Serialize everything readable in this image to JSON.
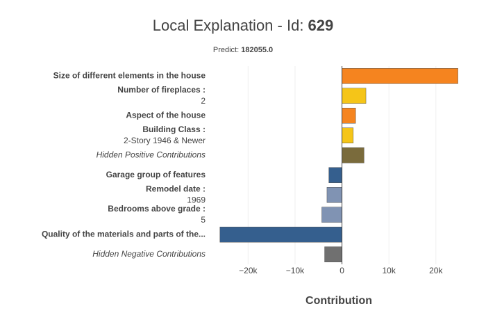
{
  "chart_data": {
    "type": "bar",
    "orientation": "horizontal",
    "title": "Local Explanation - Id: ",
    "title_id": "629",
    "subtitle": "Predict: ",
    "subtitle_value": "182055.0",
    "x_label": "Contribution",
    "categories": [
      "Size of different elements in the house",
      "Number of fireplaces :",
      "Aspect of the house",
      "Building Class :",
      "Hidden Positive Contributions",
      "Garage group of features",
      "Remodel date :",
      "Bedrooms above grade :",
      "Quality of the materials and parts of the...",
      "Hidden Negative Contributions"
    ],
    "category_values": [
      null,
      "2",
      null,
      "2-Story 1946 & Newer",
      null,
      null,
      "1969",
      "5",
      null,
      null
    ],
    "category_styles": [
      "bold",
      "bold",
      "bold",
      "bold",
      "italic",
      "bold",
      "bold",
      "bold",
      "bold",
      "italic"
    ],
    "values": [
      24700,
      5100,
      2900,
      2400,
      4700,
      -2800,
      -3200,
      -4300,
      -26000,
      -3700
    ],
    "colors": [
      "#f5841f",
      "#f5c518",
      "#f5841f",
      "#f5c518",
      "#7a6b3c",
      "#355f8e",
      "#8093b3",
      "#8093b3",
      "#355f8e",
      "#707070"
    ],
    "xlim": [
      -27000,
      25500
    ],
    "xticks": [
      {
        "value": -20000,
        "label": "−20k"
      },
      {
        "value": -10000,
        "label": "−10k"
      },
      0,
      {
        "value": 10000,
        "label": "10k"
      },
      {
        "value": 20000,
        "label": "20k"
      }
    ],
    "grid": true
  }
}
